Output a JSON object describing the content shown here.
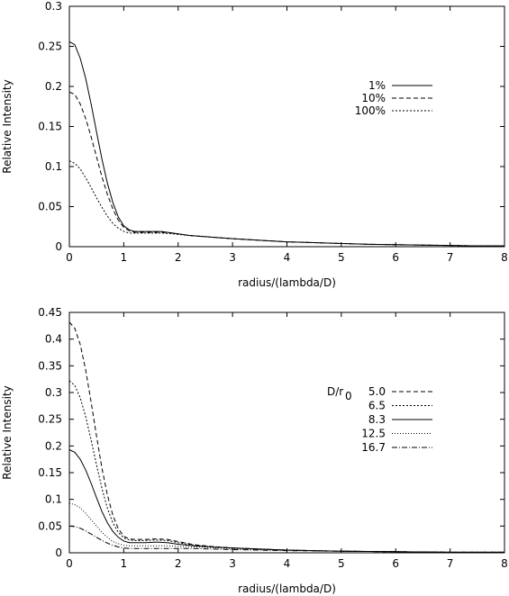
{
  "chart_data": [
    {
      "type": "line",
      "xlabel": "radius/(lambda/D)",
      "ylabel": "Relative Intensity",
      "xlim": [
        0,
        8
      ],
      "ylim": [
        0,
        0.3
      ],
      "xticks": [
        "0",
        "1",
        "2",
        "3",
        "4",
        "5",
        "6",
        "7",
        "8"
      ],
      "yticks": [
        "0",
        "0.05",
        "0.1",
        "0.15",
        "0.2",
        "0.25",
        "0.3"
      ],
      "grid": false,
      "legend_position": "right",
      "series": [
        {
          "name": "1%",
          "dash": "",
          "x": [
            0,
            0.1,
            0.2,
            0.3,
            0.4,
            0.5,
            0.6,
            0.7,
            0.8,
            0.9,
            1.0,
            1.1,
            1.2,
            1.3,
            1.5,
            1.7,
            1.9,
            2.2,
            2.6,
            3,
            3.5,
            4,
            4.5,
            5,
            5.5,
            6,
            6.5,
            7,
            7.5,
            8
          ],
          "values": [
            0.256,
            0.252,
            0.235,
            0.21,
            0.178,
            0.143,
            0.109,
            0.079,
            0.055,
            0.037,
            0.026,
            0.021,
            0.019,
            0.019,
            0.019,
            0.019,
            0.017,
            0.014,
            0.012,
            0.01,
            0.008,
            0.006,
            0.005,
            0.004,
            0.003,
            0.0025,
            0.002,
            0.0015,
            0.001,
            0.001
          ]
        },
        {
          "name": "10%",
          "dash": "5,3",
          "x": [
            0,
            0.1,
            0.2,
            0.3,
            0.4,
            0.5,
            0.6,
            0.7,
            0.8,
            0.9,
            1.0,
            1.1,
            1.2,
            1.3,
            1.5,
            1.7,
            1.9,
            2.2,
            2.6,
            3,
            3.5,
            4,
            4.5,
            5,
            5.5,
            6,
            6.5,
            7,
            7.5,
            8
          ],
          "values": [
            0.193,
            0.19,
            0.178,
            0.16,
            0.137,
            0.112,
            0.087,
            0.065,
            0.047,
            0.033,
            0.024,
            0.02,
            0.018,
            0.018,
            0.018,
            0.018,
            0.017,
            0.014,
            0.012,
            0.01,
            0.008,
            0.006,
            0.005,
            0.004,
            0.003,
            0.0025,
            0.002,
            0.0015,
            0.001,
            0.001
          ]
        },
        {
          "name": "100%",
          "dash": "2,2",
          "x": [
            0,
            0.1,
            0.2,
            0.3,
            0.4,
            0.5,
            0.6,
            0.7,
            0.8,
            0.9,
            1.0,
            1.1,
            1.2,
            1.3,
            1.5,
            1.7,
            1.9,
            2.2,
            2.6,
            3,
            3.5,
            4,
            4.5,
            5,
            5.5,
            6,
            6.5,
            7,
            7.5,
            8
          ],
          "values": [
            0.107,
            0.104,
            0.097,
            0.086,
            0.074,
            0.061,
            0.049,
            0.038,
            0.029,
            0.023,
            0.019,
            0.017,
            0.017,
            0.017,
            0.017,
            0.017,
            0.016,
            0.014,
            0.012,
            0.01,
            0.008,
            0.006,
            0.005,
            0.004,
            0.003,
            0.0025,
            0.002,
            0.0015,
            0.001,
            0.001
          ]
        }
      ]
    },
    {
      "type": "line",
      "xlabel": "radius/(lambda/D)",
      "ylabel": "Relative Intensity",
      "xlim": [
        0,
        8
      ],
      "ylim": [
        0,
        0.45
      ],
      "xticks": [
        "0",
        "1",
        "2",
        "3",
        "4",
        "5",
        "6",
        "7",
        "8"
      ],
      "yticks": [
        "0",
        "0.05",
        "0.1",
        "0.15",
        "0.2",
        "0.25",
        "0.3",
        "0.35",
        "0.4",
        "0.45"
      ],
      "grid": false,
      "legend_position": "right",
      "legend_title": "D/r",
      "legend_title_sub": "0",
      "series": [
        {
          "name": "5.0",
          "dash": "5,3",
          "x": [
            0,
            0.1,
            0.2,
            0.3,
            0.4,
            0.5,
            0.6,
            0.7,
            0.8,
            0.9,
            1.0,
            1.1,
            1.2,
            1.4,
            1.6,
            1.8,
            2.0,
            2.3,
            2.6,
            3,
            3.5,
            4,
            4.5,
            5,
            5.5,
            6,
            6.5,
            7,
            7.5,
            8
          ],
          "values": [
            0.432,
            0.42,
            0.39,
            0.342,
            0.282,
            0.218,
            0.158,
            0.108,
            0.07,
            0.045,
            0.031,
            0.026,
            0.025,
            0.025,
            0.026,
            0.025,
            0.021,
            0.015,
            0.012,
            0.009,
            0.007,
            0.005,
            0.004,
            0.003,
            0.0025,
            0.002,
            0.0015,
            0.001,
            0.001,
            0.001
          ]
        },
        {
          "name": "6.5",
          "dash": "2,2",
          "x": [
            0,
            0.1,
            0.2,
            0.3,
            0.4,
            0.5,
            0.6,
            0.7,
            0.8,
            0.9,
            1.0,
            1.1,
            1.2,
            1.4,
            1.6,
            1.8,
            2.0,
            2.3,
            2.6,
            3,
            3.5,
            4,
            4.5,
            5,
            5.5,
            6,
            6.5,
            7,
            7.5,
            8
          ],
          "values": [
            0.322,
            0.313,
            0.29,
            0.255,
            0.211,
            0.164,
            0.12,
            0.083,
            0.056,
            0.038,
            0.028,
            0.024,
            0.023,
            0.023,
            0.024,
            0.023,
            0.019,
            0.014,
            0.011,
            0.009,
            0.007,
            0.005,
            0.004,
            0.003,
            0.0025,
            0.002,
            0.0015,
            0.001,
            0.001,
            0.001
          ]
        },
        {
          "name": "8.3",
          "dash": "",
          "x": [
            0,
            0.1,
            0.2,
            0.3,
            0.4,
            0.5,
            0.6,
            0.7,
            0.8,
            0.9,
            1.0,
            1.1,
            1.2,
            1.4,
            1.6,
            1.8,
            2.0,
            2.3,
            2.6,
            3,
            3.5,
            4,
            4.5,
            5,
            5.5,
            6,
            6.5,
            7,
            7.5,
            8
          ],
          "values": [
            0.193,
            0.188,
            0.175,
            0.155,
            0.13,
            0.103,
            0.077,
            0.056,
            0.04,
            0.029,
            0.022,
            0.019,
            0.019,
            0.019,
            0.02,
            0.019,
            0.016,
            0.013,
            0.011,
            0.009,
            0.007,
            0.005,
            0.004,
            0.003,
            0.0025,
            0.002,
            0.0015,
            0.001,
            0.001,
            0.001
          ]
        },
        {
          "name": "12.5",
          "dash": "1,2",
          "x": [
            0,
            0.1,
            0.2,
            0.3,
            0.4,
            0.5,
            0.6,
            0.7,
            0.8,
            0.9,
            1.0,
            1.1,
            1.2,
            1.4,
            1.6,
            1.8,
            2.0,
            2.3,
            2.6,
            3,
            3.5,
            4,
            4.5,
            5,
            5.5,
            6,
            6.5,
            7,
            7.5,
            8
          ],
          "values": [
            0.093,
            0.09,
            0.084,
            0.074,
            0.062,
            0.05,
            0.038,
            0.029,
            0.021,
            0.017,
            0.014,
            0.013,
            0.013,
            0.013,
            0.013,
            0.013,
            0.012,
            0.011,
            0.01,
            0.008,
            0.006,
            0.005,
            0.004,
            0.003,
            0.0025,
            0.002,
            0.0015,
            0.001,
            0.001,
            0.001
          ]
        },
        {
          "name": "16.7",
          "dash": "6,2,1,2",
          "x": [
            0,
            0.1,
            0.2,
            0.3,
            0.4,
            0.5,
            0.6,
            0.7,
            0.8,
            0.9,
            1.0,
            1.1,
            1.2,
            1.4,
            1.6,
            1.8,
            2.0,
            2.3,
            2.6,
            3,
            3.5,
            4,
            4.5,
            5,
            5.5,
            6,
            6.5,
            7,
            7.5,
            8
          ],
          "values": [
            0.05,
            0.049,
            0.046,
            0.041,
            0.035,
            0.029,
            0.023,
            0.018,
            0.014,
            0.011,
            0.009,
            0.008,
            0.008,
            0.008,
            0.008,
            0.008,
            0.008,
            0.008,
            0.007,
            0.006,
            0.005,
            0.004,
            0.0035,
            0.003,
            0.0025,
            0.002,
            0.0015,
            0.001,
            0.001,
            0.001
          ]
        }
      ]
    }
  ]
}
